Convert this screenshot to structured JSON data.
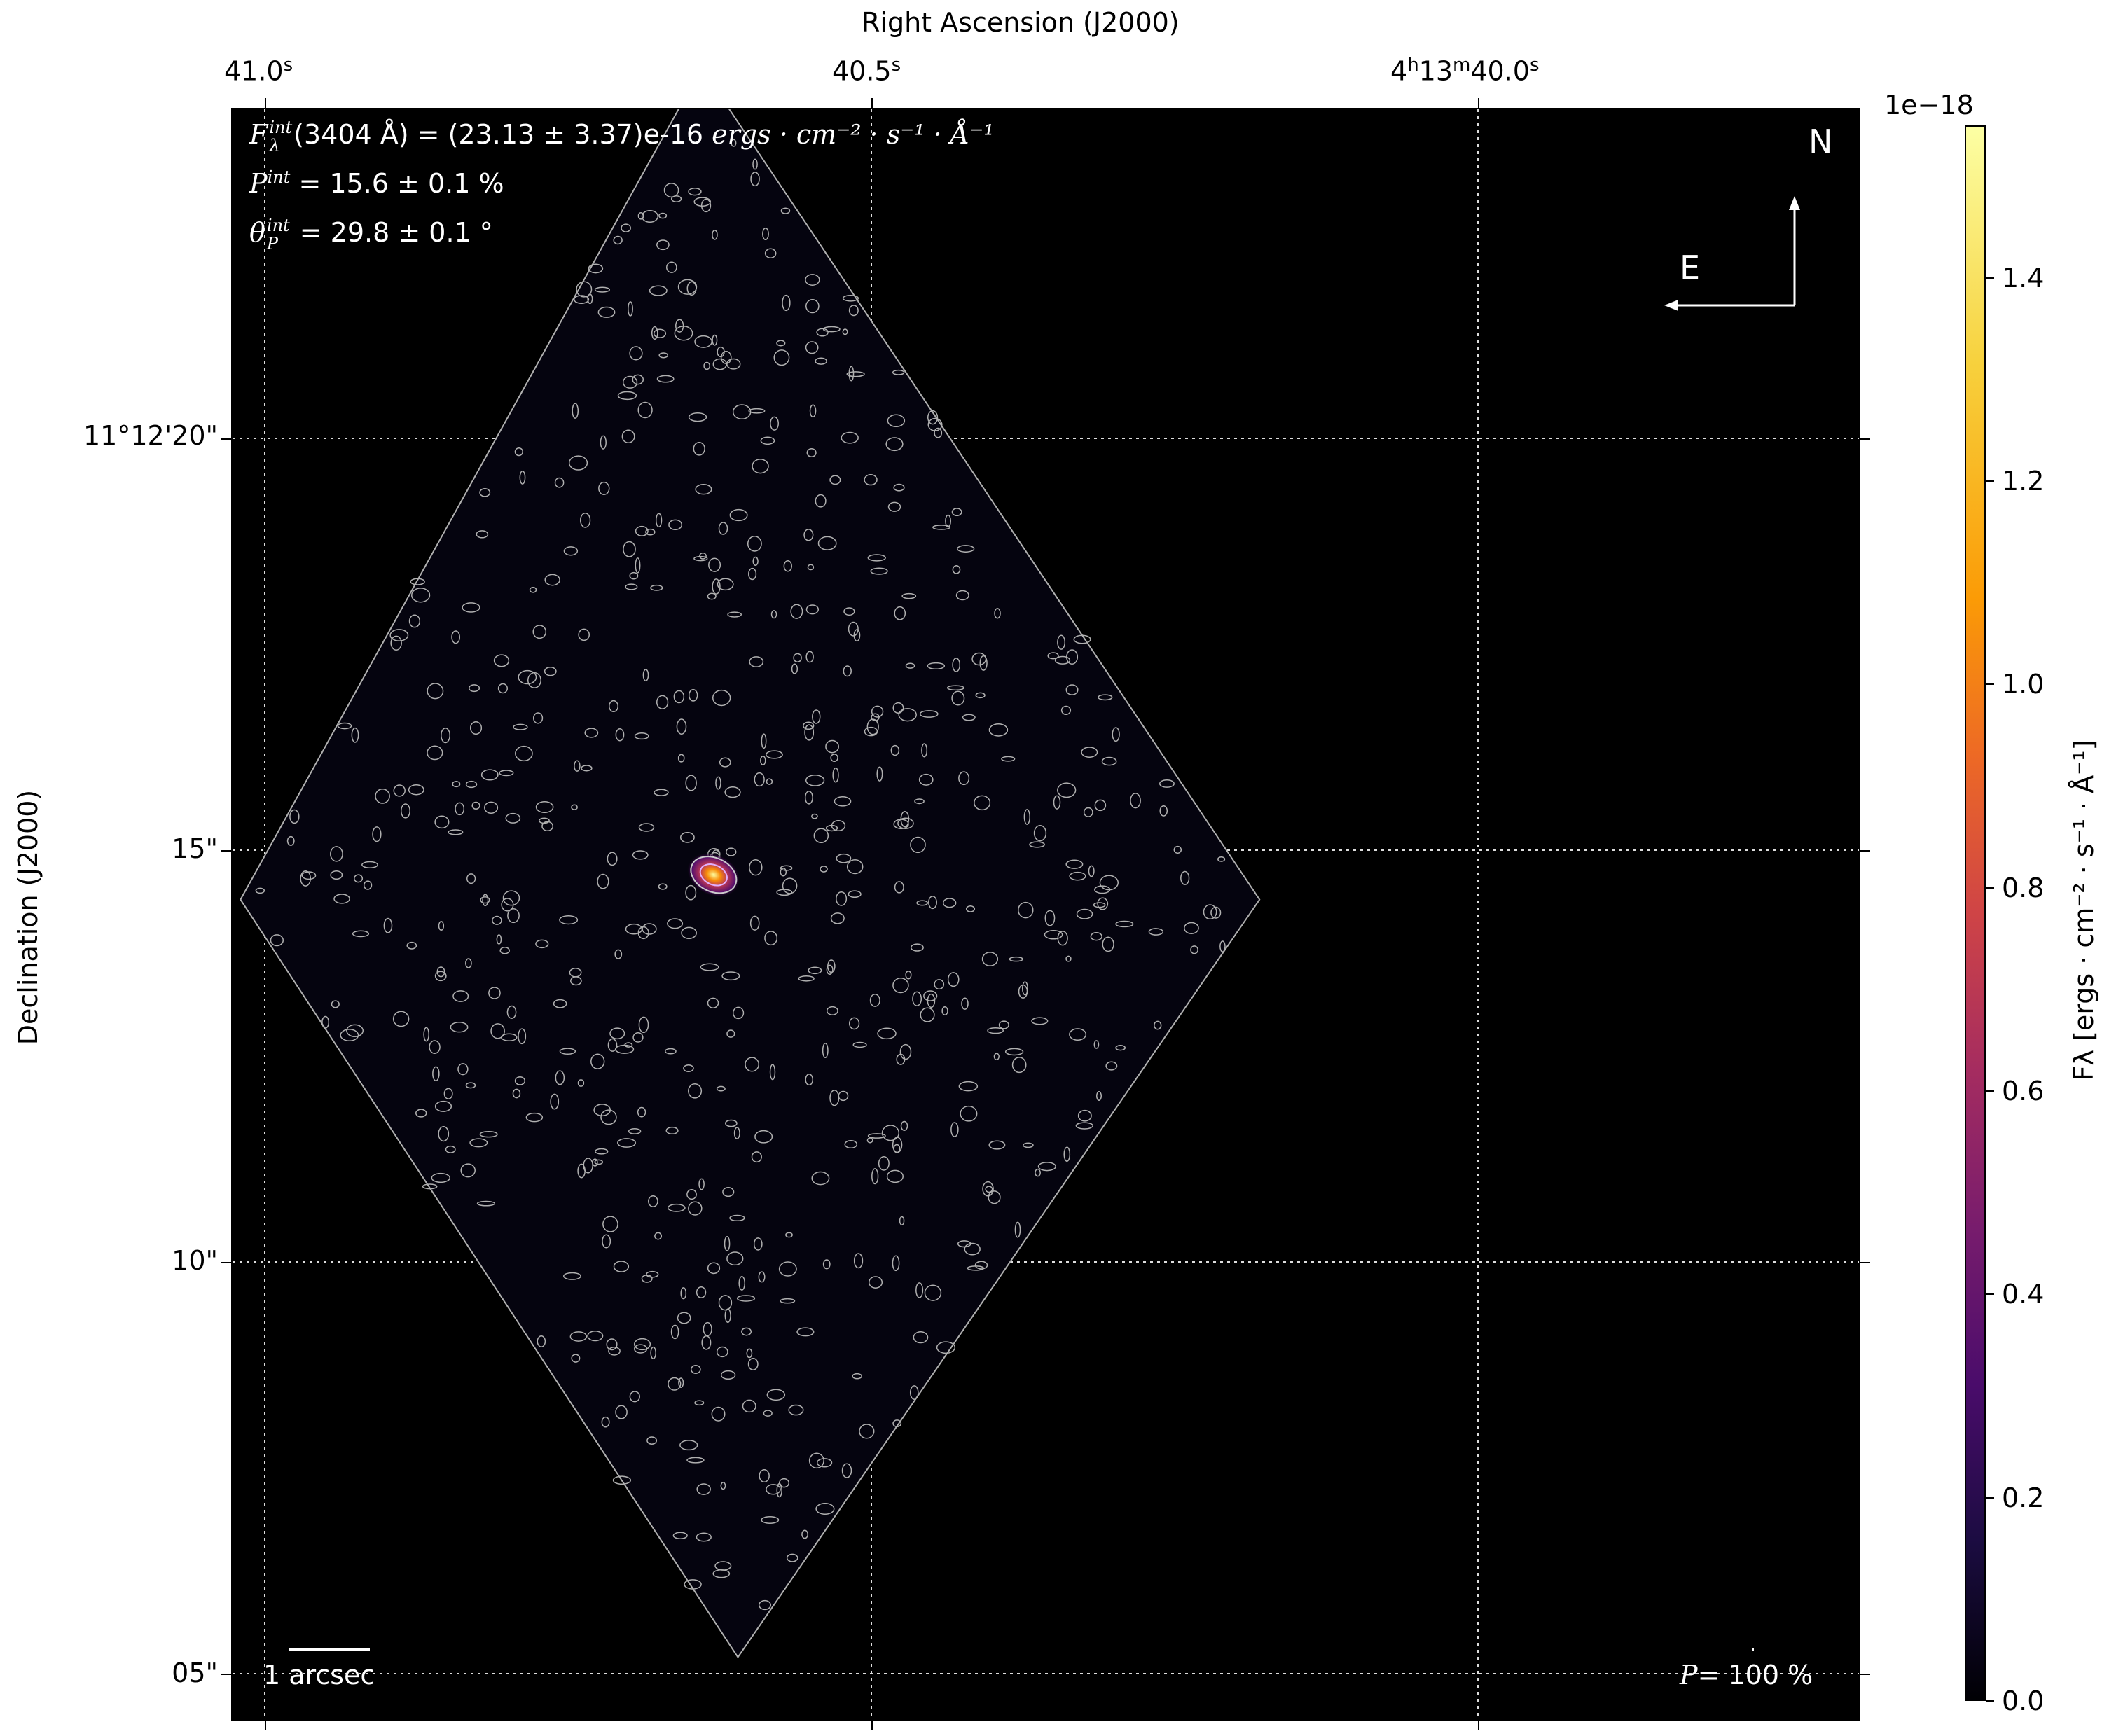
{
  "chart_data": {
    "type": "heatmap",
    "xlabel": "Right Ascension (J2000)",
    "ylabel": "Declination (J2000)",
    "x_ticks": [
      "41.0s",
      "40.5s",
      "4h13m40.0s"
    ],
    "x_tick_parts": [
      {
        "main": "41.0",
        "sup": "s"
      },
      {
        "main": "40.5",
        "sup": "s"
      },
      {
        "pre": "4",
        "h": "h",
        "mid": "13",
        "m": "m",
        "main": "40.0",
        "sup": "s"
      }
    ],
    "y_ticks": [
      "11°12'20\"",
      "15\"",
      "10\"",
      "05\""
    ],
    "grid": true,
    "colormap": "inferno",
    "colorbar": {
      "label": "Fλ [ergs · cm⁻² · s⁻¹ · Å⁻¹]",
      "multiplier": "1e−18",
      "range": [
        0.0,
        1.55
      ],
      "ticks": [
        "0.0",
        "0.2",
        "0.4",
        "0.6",
        "0.8",
        "1.0",
        "1.2",
        "1.4"
      ]
    },
    "annotations": {
      "flux": "(3404 Å) = (23.13 ± 3.37)e-16 ",
      "flux_units": "ergs · cm⁻² · s⁻¹ · Å⁻¹",
      "pol": " = 15.6 ± 0.1 %",
      "angle": " = 29.8 ± 0.1 °",
      "int": "int",
      "F": "F",
      "lambda": "λ",
      "P": "P",
      "theta": "θ"
    },
    "compass": {
      "north": "N",
      "east": "E"
    },
    "scale_bar": "1 arcsec",
    "pol_scale": "= 100 %",
    "source": {
      "ra_s": 40.63,
      "dec_arcsec": 14.7
    },
    "field_vertices_ra_s_dec_arcsec": [
      [
        40.64,
        24.5
      ],
      [
        40.18,
        14.4
      ],
      [
        40.61,
        5.2
      ],
      [
        41.02,
        14.4
      ]
    ],
    "contour_color": "#b0b0b0",
    "contour_speckle_count": 600
  }
}
